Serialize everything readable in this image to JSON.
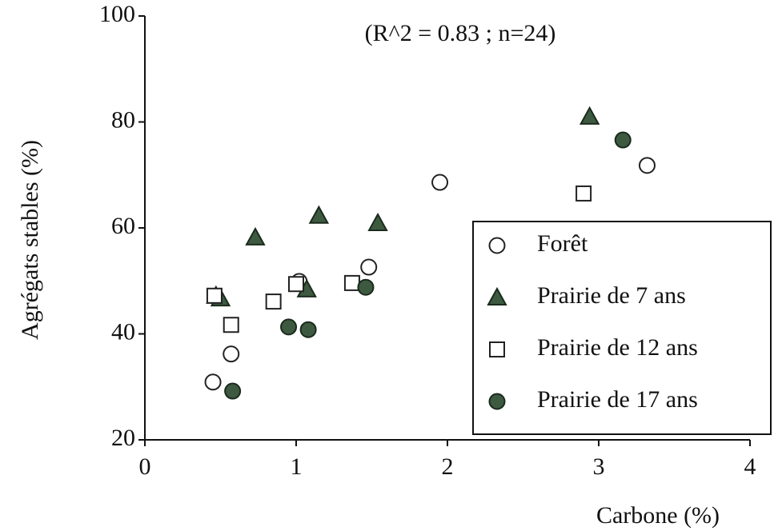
{
  "chart_data": {
    "type": "scatter",
    "annotation": "(R^2 = 0.83 ;  n=24)",
    "x_label": "Carbone  (%)",
    "y_label": "Agrégats stables (%)",
    "xlim": [
      0,
      4
    ],
    "xticks": [
      0,
      1,
      2,
      3,
      4
    ],
    "ylim": [
      20,
      100
    ],
    "yticks": [
      20,
      40,
      60,
      80,
      100
    ],
    "legend": "lower right",
    "series": [
      {
        "name": "Forêt",
        "marker": "circle",
        "filled": false,
        "color": "#222222",
        "x": [
          0.45,
          0.57,
          1.02,
          1.48,
          1.95,
          3.32
        ],
        "values": [
          30.9,
          36.2,
          49.9,
          52.6,
          68.6,
          71.8
        ]
      },
      {
        "name": "Prairie de 7 ans",
        "marker": "triangle",
        "filled": true,
        "color": "#3d5a40",
        "x": [
          0.47,
          0.5,
          0.73,
          1.07,
          1.15,
          1.54,
          2.94
        ],
        "values": [
          47.2,
          46.7,
          58.2,
          48.4,
          62.3,
          60.9,
          81
        ]
      },
      {
        "name": "Prairie de 12 ans",
        "marker": "square",
        "filled": false,
        "color": "#222222",
        "x": [
          0.46,
          0.57,
          0.85,
          1.0,
          1.37,
          2.9
        ],
        "values": [
          47.2,
          41.7,
          46.1,
          49.4,
          49.6,
          66.5
        ]
      },
      {
        "name": "Prairie de 17 ans",
        "marker": "circle",
        "filled": true,
        "color": "#3d5a40",
        "x": [
          0.58,
          0.95,
          1.08,
          1.46,
          3.16
        ],
        "values": [
          29.2,
          41.3,
          40.8,
          48.8,
          76.6
        ]
      }
    ]
  }
}
